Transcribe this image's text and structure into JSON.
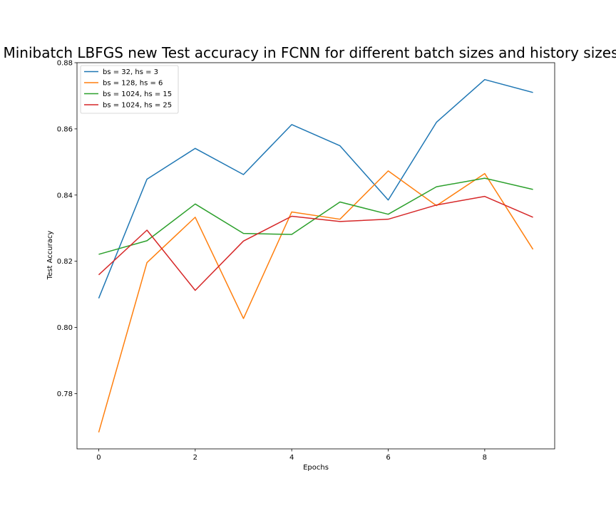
{
  "chart_data": {
    "type": "line",
    "title": "Minibatch LBFGS new Test accuracy in FCNN for different batch sizes and history sizes",
    "xlabel": "Epochs",
    "ylabel": "Test Accuracy",
    "x": [
      0,
      1,
      2,
      3,
      4,
      5,
      6,
      7,
      8,
      9
    ],
    "xlim": [
      -0.45,
      9.45
    ],
    "ylim": [
      0.7633,
      0.88
    ],
    "xticks": [
      0,
      2,
      4,
      6,
      8
    ],
    "yticks": [
      0.78,
      0.8,
      0.82,
      0.84,
      0.86,
      0.88
    ],
    "ytick_labels": [
      "0.78",
      "0.80",
      "0.82",
      "0.84",
      "0.86",
      "0.88"
    ],
    "grid": false,
    "legend_position": "top-left",
    "series": [
      {
        "name": "bs = 32, hs = 3",
        "color": "#1f77b4",
        "values": [
          0.8088,
          0.8448,
          0.8541,
          0.8462,
          0.8613,
          0.8549,
          0.8385,
          0.862,
          0.8749,
          0.871
        ]
      },
      {
        "name": "bs = 128, hs = 6",
        "color": "#ff7f0e",
        "values": [
          0.7683,
          0.8196,
          0.8333,
          0.8027,
          0.8349,
          0.8327,
          0.8473,
          0.8368,
          0.8465,
          0.8236
        ]
      },
      {
        "name": "bs = 1024, hs = 15",
        "color": "#2ca02c",
        "values": [
          0.8221,
          0.8262,
          0.8373,
          0.8284,
          0.8281,
          0.8379,
          0.8342,
          0.8425,
          0.8451,
          0.8417
        ]
      },
      {
        "name": "bs = 1024, hs = 25",
        "color": "#d62728",
        "values": [
          0.8159,
          0.8294,
          0.8112,
          0.8261,
          0.8336,
          0.832,
          0.8327,
          0.837,
          0.8396,
          0.8333
        ]
      }
    ]
  }
}
